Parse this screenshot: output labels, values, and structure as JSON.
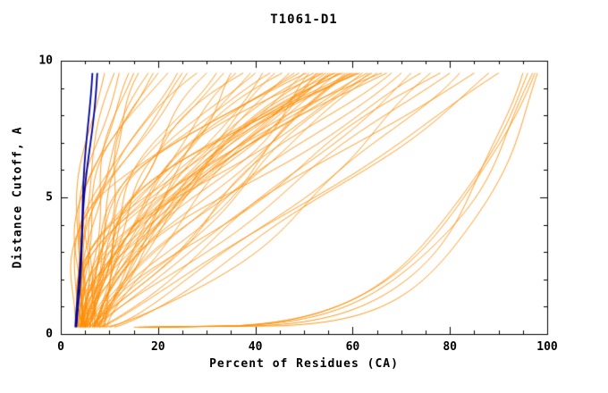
{
  "chart_data": {
    "type": "line",
    "title": "T1061-D1",
    "xlabel": "Percent of Residues (CA)",
    "ylabel": "Distance Cutoff, A",
    "xlim": [
      0,
      100
    ],
    "ylim": [
      0,
      10
    ],
    "x_ticks": [
      0,
      20,
      40,
      60,
      80,
      100
    ],
    "y_ticks": [
      0,
      5,
      10
    ],
    "x_minor_step": 5,
    "y_minor_step": 1,
    "grid": false,
    "legend": "none",
    "colors": {
      "model_lines": "#ff8c00",
      "reference_lines": "#000099",
      "frame": "#000000",
      "background": "#ffffff"
    },
    "curve_encoding": "each curve = [x_percent_at_bottom, x_percent_at_top, shape_exponent, wiggle_amplitude, wiggle_phase]; x(t) = x0 + (x1 - x0) * t^e + wiggle, with t the normalized distance-cutoff from 0.25 A to 9.55 A",
    "reference_curves": [
      [
        3.0,
        6.5,
        1.1,
        0.3,
        0.0
      ],
      [
        3.2,
        7.5,
        1.15,
        0.4,
        1.0
      ]
    ],
    "model_curves": [
      [
        3.0,
        9.0,
        2.6,
        1.0,
        0.5
      ],
      [
        3.5,
        12.0,
        2.2,
        1.5,
        1.0
      ],
      [
        4.0,
        14.0,
        2.8,
        2.0,
        2.0
      ],
      [
        3.0,
        16.0,
        1.9,
        2.5,
        3.0
      ],
      [
        4.5,
        18.0,
        2.4,
        1.2,
        4.0
      ],
      [
        5.0,
        20.0,
        2.0,
        3.0,
        5.0
      ],
      [
        3.8,
        22.0,
        2.7,
        1.8,
        6.0
      ],
      [
        4.2,
        24.0,
        1.7,
        2.2,
        0.0
      ],
      [
        5.5,
        26.0,
        2.2,
        2.8,
        1.5
      ],
      [
        3.3,
        28.0,
        2.9,
        1.4,
        2.5
      ],
      [
        4.8,
        30.0,
        1.8,
        3.2,
        3.5
      ],
      [
        3.6,
        11.0,
        2.4,
        0.8,
        4.5
      ],
      [
        5.2,
        15.0,
        2.1,
        1.6,
        5.5
      ],
      [
        4.4,
        19.0,
        2.6,
        2.4,
        0.8
      ],
      [
        3.9,
        25.0,
        2.0,
        2.0,
        1.8
      ],
      [
        4.0,
        32.0,
        1.5,
        3.0,
        0.0
      ],
      [
        6.0,
        33.5,
        2.0,
        2.0,
        1.0
      ],
      [
        5.0,
        35.0,
        1.2,
        4.0,
        2.0
      ],
      [
        7.0,
        36.0,
        1.8,
        2.5,
        3.0
      ],
      [
        4.5,
        37.5,
        2.3,
        3.5,
        4.0
      ],
      [
        8.0,
        39.0,
        1.4,
        1.5,
        5.0
      ],
      [
        5.5,
        40.0,
        1.9,
        3.0,
        6.0
      ],
      [
        6.5,
        41.5,
        1.1,
        2.0,
        0.7
      ],
      [
        4.0,
        43.0,
        2.5,
        4.0,
        1.7
      ],
      [
        9.0,
        44.0,
        1.6,
        2.6,
        2.7
      ],
      [
        5.0,
        45.5,
        2.1,
        3.4,
        3.7
      ],
      [
        7.5,
        47.0,
        1.3,
        1.8,
        4.7
      ],
      [
        4.2,
        48.0,
        1.8,
        2.9,
        5.7
      ],
      [
        6.0,
        49.0,
        2.4,
        3.8,
        0.3
      ],
      [
        8.5,
        50.0,
        1.5,
        2.2,
        1.3
      ],
      [
        5.8,
        51.0,
        1.0,
        4.2,
        2.3
      ],
      [
        4.6,
        52.0,
        2.0,
        3.1,
        3.3
      ],
      [
        7.0,
        53.0,
        1.7,
        2.4,
        4.3
      ],
      [
        5.2,
        54.0,
        2.2,
        3.6,
        5.3
      ],
      [
        9.5,
        55.0,
        1.3,
        1.9,
        6.1
      ],
      [
        4.8,
        56.0,
        1.9,
        4.4,
        0.9
      ],
      [
        6.8,
        57.0,
        1.5,
        2.7,
        1.9
      ],
      [
        5.4,
        58.0,
        2.3,
        3.3,
        2.9
      ],
      [
        8.0,
        59.0,
        1.2,
        2.1,
        3.9
      ],
      [
        4.4,
        60.0,
        1.8,
        4.6,
        4.9
      ],
      [
        6.2,
        61.0,
        2.1,
        2.8,
        5.9
      ],
      [
        5.6,
        62.0,
        1.4,
        3.7,
        0.4
      ],
      [
        7.2,
        63.0,
        1.9,
        2.3,
        1.4
      ],
      [
        5.0,
        64.0,
        1.6,
        4.1,
        2.4
      ],
      [
        8.8,
        65.0,
        1.3,
        2.6,
        3.4
      ],
      [
        6.0,
        66.0,
        2.0,
        3.2,
        4.4
      ],
      [
        4.7,
        67.0,
        1.7,
        2.2,
        5.4
      ],
      [
        7.6,
        68.0,
        1.2,
        3.9,
        6.2
      ],
      [
        5.0,
        50.5,
        2.6,
        2.5,
        0.6
      ],
      [
        6.4,
        52.5,
        1.1,
        3.5,
        1.6
      ],
      [
        4.9,
        54.5,
        1.5,
        2.0,
        2.6
      ],
      [
        7.8,
        56.5,
        2.2,
        4.3,
        3.6
      ],
      [
        5.3,
        58.5,
        1.0,
        2.9,
        4.6
      ],
      [
        6.6,
        60.5,
        1.8,
        3.4,
        5.6
      ],
      [
        4.1,
        55.5,
        1.4,
        2.3,
        0.2
      ],
      [
        8.2,
        57.5,
        2.4,
        3.0,
        1.2
      ],
      [
        5.9,
        53.5,
        1.6,
        4.5,
        2.2
      ],
      [
        6.9,
        59.5,
        1.3,
        2.4,
        3.2
      ],
      [
        5.1,
        61.5,
        2.0,
        3.6,
        4.2
      ],
      [
        7.4,
        63.5,
        1.1,
        2.7,
        5.2
      ],
      [
        6.0,
        70.0,
        1.1,
        3.0,
        0.5
      ],
      [
        8.0,
        72.0,
        0.9,
        2.0,
        1.5
      ],
      [
        5.0,
        74.0,
        1.3,
        3.5,
        2.5
      ],
      [
        10.0,
        76.0,
        0.8,
        2.5,
        3.5
      ],
      [
        7.0,
        78.0,
        1.2,
        3.2,
        4.5
      ],
      [
        6.5,
        80.0,
        1.0,
        2.2,
        5.5
      ],
      [
        9.0,
        82.0,
        0.75,
        2.8,
        0.1
      ],
      [
        7.5,
        85.0,
        1.15,
        1.8,
        1.1
      ],
      [
        11.0,
        88.0,
        0.85,
        2.4,
        2.1
      ],
      [
        8.5,
        90.0,
        0.95,
        1.5,
        3.1
      ],
      [
        16.0,
        95.0,
        0.22,
        0.8,
        0.0
      ],
      [
        18.0,
        96.0,
        0.28,
        0.6,
        2.0
      ],
      [
        15.0,
        97.0,
        0.25,
        1.0,
        4.0
      ],
      [
        20.0,
        97.5,
        0.3,
        0.5,
        1.0
      ],
      [
        17.0,
        98.0,
        0.2,
        0.7,
        3.0
      ]
    ]
  }
}
